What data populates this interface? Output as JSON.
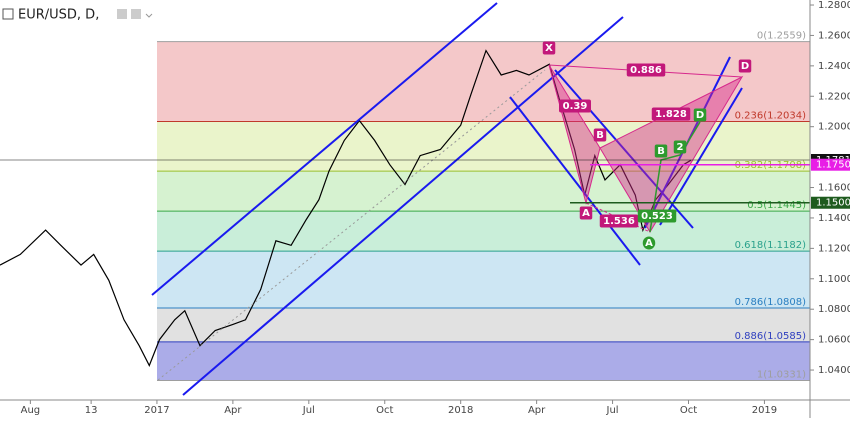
{
  "chart_data": {
    "type": "line",
    "title": "EUR/USD, D,",
    "color": "#000000",
    "x": [
      -1.2,
      -0.4,
      0.6,
      1.2,
      2.0,
      2.5,
      3.1,
      3.7,
      4.3,
      4.7,
      5.1,
      5.7,
      6.1,
      6.7,
      7.3,
      8.0,
      8.5,
      9.1,
      9.7,
      10.3,
      10.9,
      11.4,
      11.8,
      12.4,
      13.0,
      13.6,
      14.2,
      14.8,
      15.4,
      16.2,
      17.0,
      17.4,
      18.0,
      18.6,
      19.2,
      19.7,
      20.5,
      20.9,
      21.5,
      21.9,
      22.3,
      22.7,
      23.3,
      23.9,
      24.2,
      24.7,
      25.2,
      25.8,
      26.1
    ],
    "values": [
      1.109,
      1.116,
      1.132,
      1.122,
      1.109,
      1.116,
      1.099,
      1.073,
      1.056,
      1.043,
      1.06,
      1.073,
      1.079,
      1.056,
      1.066,
      1.07,
      1.073,
      1.093,
      1.125,
      1.122,
      1.139,
      1.152,
      1.171,
      1.191,
      1.204,
      1.191,
      1.175,
      1.162,
      1.181,
      1.185,
      1.201,
      1.221,
      1.25,
      1.234,
      1.237,
      1.234,
      1.241,
      1.218,
      1.185,
      1.155,
      1.181,
      1.165,
      1.175,
      1.155,
      1.132,
      1.152,
      1.162,
      1.175,
      1.178
    ],
    "xlim": [
      -1.2,
      30.8
    ],
    "xticks": [
      {
        "value": 0,
        "label": "Aug"
      },
      {
        "value": 2.4,
        "label": "13"
      },
      {
        "value": 5,
        "label": "2017"
      },
      {
        "value": 8,
        "label": "Apr"
      },
      {
        "value": 11,
        "label": "Jul"
      },
      {
        "value": 14,
        "label": "Oct"
      },
      {
        "value": 17,
        "label": "2018"
      },
      {
        "value": 20,
        "label": "Apr"
      },
      {
        "value": 23,
        "label": "Jul"
      },
      {
        "value": 26,
        "label": "Oct"
      },
      {
        "value": 29,
        "label": "2019"
      }
    ],
    "ylim": [
      1.0203,
      1.2833
    ],
    "yticks": [
      {
        "value": 1.28,
        "label": "1.2800"
      },
      {
        "value": 1.26,
        "label": "1.2600"
      },
      {
        "value": 1.24,
        "label": "1.2400"
      },
      {
        "value": 1.22,
        "label": "1.2200"
      },
      {
        "value": 1.2,
        "label": "1.2000"
      },
      {
        "value": 1.16,
        "label": "1.1600"
      },
      {
        "value": 1.14,
        "label": "1.1400"
      },
      {
        "value": 1.12,
        "label": "1.1200"
      },
      {
        "value": 1.1,
        "label": "1.1000"
      },
      {
        "value": 1.08,
        "label": "1.0800"
      },
      {
        "value": 1.06,
        "label": "1.0600"
      },
      {
        "value": 1.04,
        "label": "1.0400"
      }
    ],
    "fib_levels": [
      {
        "value": 1.2559,
        "label": "0(1.2559)",
        "color": "#9e9e9e",
        "fill": "#f4c8c9"
      },
      {
        "value": 1.2034,
        "label": "0.236(1.2034)",
        "color": "#c0392b",
        "fill": "#eaf4cb"
      },
      {
        "value": 1.1708,
        "label": "0.382(1.1708)",
        "color": "#9bbf2e",
        "fill": "#d6f2d0"
      },
      {
        "value": 1.1445,
        "label": "0.5(1.1445)",
        "color": "#3aa848",
        "fill": "#c9eed9"
      },
      {
        "value": 1.1182,
        "label": "0.618(1.1182)",
        "color": "#2aa18c",
        "fill": "#cde6f3"
      },
      {
        "value": 1.0808,
        "label": "0.786(1.0808)",
        "color": "#2a7fc1",
        "fill": "#e1e1e1"
      },
      {
        "value": 1.0585,
        "label": "0.886(1.0585)",
        "color": "#2f3fbf",
        "fill": "#abace8"
      },
      {
        "value": 1.0331,
        "label": "1(1.0331)",
        "color": "#9e9e9e"
      }
    ],
    "price_tags": [
      {
        "value": 1.1781,
        "label": "1.1781",
        "color": "#111111"
      },
      {
        "value": 1.175,
        "label": "1.1750",
        "color": "#e81ee6"
      },
      {
        "value": 1.15,
        "label": "1.1500",
        "color": "#1e5b1e"
      }
    ],
    "annotations": [
      {
        "text": "X",
        "color": "#c2187a"
      },
      {
        "text": "0.886",
        "color": "#c2187a"
      },
      {
        "text": "D",
        "color": "#c2187a"
      },
      {
        "text": "0.39",
        "color": "#c2187a"
      },
      {
        "text": "B",
        "color": "#c2187a"
      },
      {
        "text": "1.828",
        "color": "#c2187a"
      },
      {
        "text": "D",
        "color": "#2e9a2e"
      },
      {
        "text": "B",
        "color": "#2e9a2e"
      },
      {
        "text": "2",
        "color": "#2e9a2e"
      },
      {
        "text": "A",
        "color": "#c2187a"
      },
      {
        "text": "1.536",
        "color": "#c2187a"
      },
      {
        "text": "0.523",
        "color": "#2e9a2e"
      },
      {
        "text": "A",
        "color": "#2e9a2e"
      }
    ]
  }
}
